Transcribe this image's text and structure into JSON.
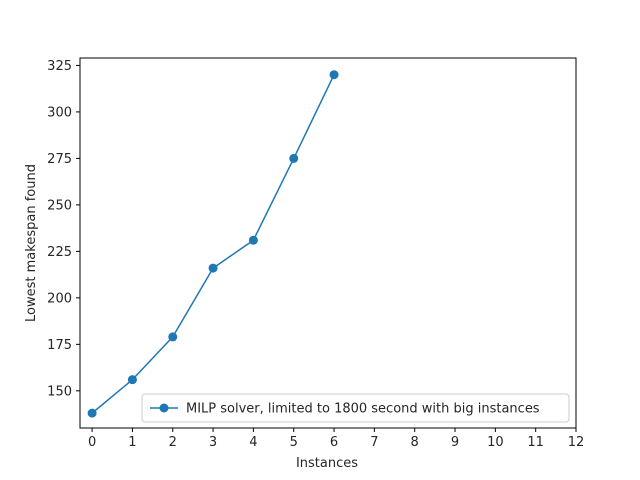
{
  "chart_data": {
    "type": "line",
    "title": "",
    "xlabel": "Instances",
    "ylabel": "Lowest makespan found",
    "xlim": [
      -0.3,
      12
    ],
    "ylim": [
      130,
      329
    ],
    "x_ticks": [
      0,
      1,
      2,
      3,
      4,
      5,
      6,
      7,
      8,
      9,
      10,
      11,
      12
    ],
    "y_ticks": [
      150,
      175,
      200,
      225,
      250,
      275,
      300,
      325
    ],
    "grid": false,
    "legend_position": "lower-right",
    "series": [
      {
        "name": "MILP solver, limited to 1800 second with big instances",
        "color": "#1f77b4",
        "marker": "circle",
        "x": [
          0,
          1,
          2,
          3,
          4,
          5,
          6
        ],
        "y": [
          138,
          156,
          179,
          216,
          231,
          275,
          320
        ]
      }
    ]
  }
}
